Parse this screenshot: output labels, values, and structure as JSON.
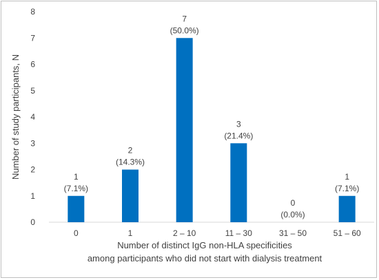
{
  "chart_data": {
    "type": "bar",
    "categories": [
      "0",
      "1",
      "2 – 10",
      "11 – 30",
      "31 – 50",
      "51 – 60"
    ],
    "values": [
      1,
      2,
      7,
      3,
      0,
      1
    ],
    "data_labels": [
      [
        "1",
        "(7.1%)"
      ],
      [
        "2",
        "(14.3%)"
      ],
      [
        "7",
        "(50.0%)"
      ],
      [
        "3",
        "(21.4%)"
      ],
      [
        "0",
        "(0.0%)"
      ],
      [
        "1",
        "(7.1%)"
      ]
    ],
    "ylim": [
      0,
      8
    ],
    "yticks": [
      "0",
      "1",
      "2",
      "3",
      "4",
      "5",
      "6",
      "7",
      "8"
    ],
    "ylabel": "Number of study participants, N",
    "xlabel_line1": "Number of distinct IgG non-HLA specificities",
    "xlabel_line2": "among participants who did not start with dialysis treatment",
    "bar_color": "#0070c0",
    "grid": false
  }
}
